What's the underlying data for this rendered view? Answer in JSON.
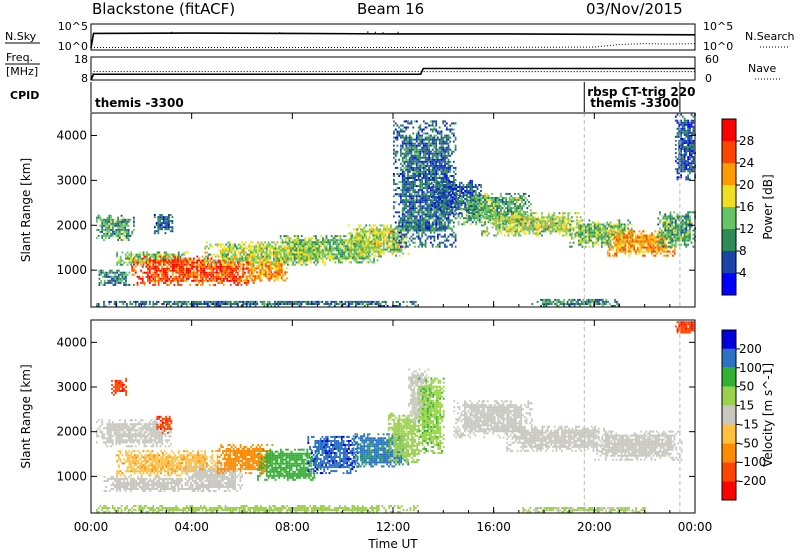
{
  "header": {
    "station": "Blackstone (fitACF)",
    "beam": "Beam 16",
    "date": "03/Nov/2015"
  },
  "chart_data": [
    {
      "type": "line",
      "panel": "summary-nsky-nsearch",
      "left_label": "N.Sky",
      "right_label": "N.Search",
      "left_ticks": [
        "10^5",
        "10^0"
      ],
      "right_ticks": [
        "10^5",
        "10^0"
      ],
      "series": [
        {
          "name": "N.Sky",
          "style": "solid",
          "x": [
            0,
            0.1,
            4,
            8,
            12,
            16,
            20,
            24
          ],
          "y": [
            0,
            3.3,
            3.4,
            3.3,
            3.2,
            3.2,
            3.1,
            3.0
          ]
        },
        {
          "name": "N.Search",
          "style": "dotted",
          "x": [
            0,
            0.1,
            12,
            20,
            21,
            22,
            23,
            24
          ],
          "y": [
            0,
            0.1,
            0.1,
            0.2,
            0.8,
            1.0,
            0.9,
            1.0
          ]
        }
      ]
    },
    {
      "type": "line",
      "panel": "summary-freq-nave",
      "left_label": "Freq. [MHz]",
      "right_label": "Nave",
      "left_ticks": [
        18,
        8
      ],
      "right_ticks": [
        60,
        0
      ],
      "series": [
        {
          "name": "Freq.",
          "style": "solid",
          "x": [
            0,
            0.1,
            13.1,
            13.2,
            24
          ],
          "y": [
            8,
            10.5,
            10.5,
            13,
            13
          ]
        },
        {
          "name": "Nave",
          "style": "dotted",
          "x": [
            0,
            0.1,
            24
          ],
          "y": [
            0,
            22,
            22
          ]
        }
      ]
    },
    {
      "type": "table",
      "panel": "cpid",
      "label": "CPID",
      "entries": [
        {
          "start": 0,
          "end": 19.6,
          "text": "themis -3300"
        },
        {
          "start": 19.6,
          "end": 24,
          "text": "rbsp CT-trig 220"
        },
        {
          "start": 19.6,
          "end": 24,
          "text": "themis -3300"
        }
      ]
    },
    {
      "type": "heatmap",
      "panel": "power",
      "ylabel": "Slant Range [km]",
      "xlim": [
        0,
        24
      ],
      "ylim": [
        180,
        4500
      ],
      "yticks": [
        1000,
        2000,
        3000,
        4000
      ],
      "colorbar": {
        "label": "Power [dB]",
        "ticks": [
          4,
          8,
          12,
          16,
          20,
          24,
          28
        ],
        "colors": [
          "#0000ff",
          "#1a44aa",
          "#2e8b57",
          "#66c466",
          "#f0e020",
          "#ff9a00",
          "#ff4500",
          "#ff0000"
        ]
      },
      "bands": [
        {
          "t0": 0.2,
          "t1": 1.7,
          "r0": 1650,
          "r1": 2200,
          "level": 10
        },
        {
          "t0": 0.2,
          "t1": 13.0,
          "r0": 180,
          "r1": 300,
          "level": 6
        },
        {
          "t0": 2.5,
          "t1": 3.2,
          "r0": 1800,
          "r1": 2250,
          "level": 5
        },
        {
          "t0": 0.3,
          "t1": 1.5,
          "r0": 650,
          "r1": 1000,
          "level": 8
        },
        {
          "t0": 1.0,
          "t1": 3.8,
          "r0": 1100,
          "r1": 1400,
          "level": 12
        },
        {
          "t0": 1.6,
          "t1": 6.5,
          "r0": 650,
          "r1": 1300,
          "level": 24
        },
        {
          "t0": 6.0,
          "t1": 7.8,
          "r0": 750,
          "r1": 1250,
          "level": 20
        },
        {
          "t0": 4.5,
          "t1": 9.5,
          "r0": 1100,
          "r1": 1600,
          "level": 14
        },
        {
          "t0": 7.5,
          "t1": 11.5,
          "r0": 1150,
          "r1": 1750,
          "level": 12
        },
        {
          "t0": 10.2,
          "t1": 12.6,
          "r0": 1300,
          "r1": 2000,
          "level": 14
        },
        {
          "t0": 12.0,
          "t1": 14.5,
          "r0": 1500,
          "r1": 4300,
          "level": 6
        },
        {
          "t0": 13.5,
          "t1": 15.5,
          "r0": 2200,
          "r1": 3000,
          "level": 5
        },
        {
          "t0": 14.5,
          "t1": 17.5,
          "r0": 2000,
          "r1": 2700,
          "level": 10
        },
        {
          "t0": 15.5,
          "t1": 19.5,
          "r0": 1750,
          "r1": 2250,
          "level": 14
        },
        {
          "t0": 19.0,
          "t1": 21.5,
          "r0": 1500,
          "r1": 2100,
          "level": 12
        },
        {
          "t0": 20.5,
          "t1": 23.2,
          "r0": 1300,
          "r1": 1850,
          "level": 20
        },
        {
          "t0": 22.5,
          "t1": 24.0,
          "r0": 1500,
          "r1": 2300,
          "level": 10
        },
        {
          "t0": 23.2,
          "t1": 24.0,
          "r0": 3000,
          "r1": 4500,
          "level": 5
        },
        {
          "t0": 17.5,
          "t1": 21.0,
          "r0": 180,
          "r1": 350,
          "level": 8
        }
      ]
    },
    {
      "type": "heatmap",
      "panel": "velocity",
      "ylabel": "Slant Range [km]",
      "xlabel": "Time UT",
      "xlim": [
        0,
        24
      ],
      "ylim": [
        180,
        4500
      ],
      "yticks": [
        1000,
        2000,
        3000,
        4000
      ],
      "xticks": [
        "00:00",
        "04:00",
        "08:00",
        "12:00",
        "16:00",
        "20:00",
        "00:00"
      ],
      "colorbar": {
        "label": "Velocity [m s^-1]",
        "ticks": [
          -200,
          -100,
          -50,
          -15,
          15,
          50,
          100,
          200
        ],
        "colors": [
          "#ff0000",
          "#ff4500",
          "#ff8c00",
          "#ffc040",
          "#c8c8c0",
          "#9ad24c",
          "#33b033",
          "#2a72c2",
          "#0000dd"
        ]
      },
      "bands": [
        {
          "t0": 0.2,
          "t1": 3.2,
          "r0": 1650,
          "r1": 2250,
          "value": 0
        },
        {
          "t0": 0.8,
          "t1": 1.4,
          "r0": 2800,
          "r1": 3200,
          "value": -180
        },
        {
          "t0": 2.6,
          "t1": 3.2,
          "r0": 1950,
          "r1": 2350,
          "value": -180
        },
        {
          "t0": 0.5,
          "t1": 4.0,
          "r0": 650,
          "r1": 1000,
          "value": 0
        },
        {
          "t0": 1.0,
          "t1": 5.0,
          "r0": 1000,
          "r1": 1550,
          "value": -40
        },
        {
          "t0": 3.8,
          "t1": 6.0,
          "r0": 650,
          "r1": 1200,
          "value": 0
        },
        {
          "t0": 5.0,
          "t1": 7.2,
          "r0": 1050,
          "r1": 1700,
          "value": -80
        },
        {
          "t0": 6.6,
          "t1": 9.0,
          "r0": 900,
          "r1": 1600,
          "value": 70
        },
        {
          "t0": 8.6,
          "t1": 10.6,
          "r0": 1050,
          "r1": 1900,
          "value": 180
        },
        {
          "t0": 10.4,
          "t1": 12.6,
          "r0": 1200,
          "r1": 1950,
          "value": 120
        },
        {
          "t0": 11.8,
          "t1": 13.0,
          "r0": 1300,
          "r1": 2400,
          "value": 30
        },
        {
          "t0": 12.6,
          "t1": 13.4,
          "r0": 2200,
          "r1": 3400,
          "value": 0
        },
        {
          "t0": 13.0,
          "t1": 14.0,
          "r0": 1500,
          "r1": 3200,
          "value": 40
        },
        {
          "t0": 14.4,
          "t1": 17.5,
          "r0": 1850,
          "r1": 2700,
          "value": 0
        },
        {
          "t0": 16.5,
          "t1": 20.5,
          "r0": 1550,
          "r1": 2100,
          "value": 0
        },
        {
          "t0": 20.0,
          "t1": 23.5,
          "r0": 1350,
          "r1": 2000,
          "value": 0
        },
        {
          "t0": 23.2,
          "t1": 24.0,
          "r0": 4200,
          "r1": 4500,
          "value": -180
        },
        {
          "t0": 0.2,
          "t1": 13.0,
          "r0": 180,
          "r1": 320,
          "value": 30
        },
        {
          "t0": 17.0,
          "t1": 22.0,
          "r0": 180,
          "r1": 300,
          "value": 20
        }
      ]
    }
  ]
}
